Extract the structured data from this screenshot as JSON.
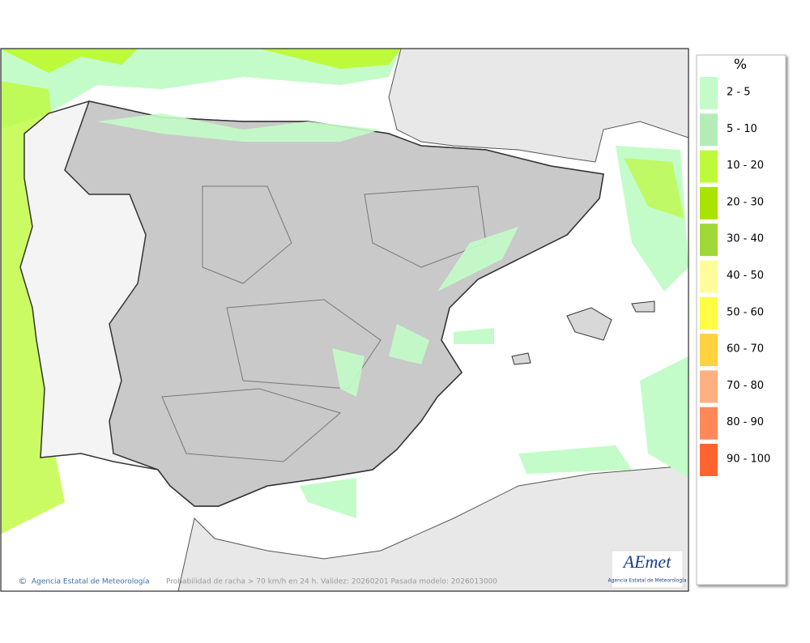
{
  "legend": {
    "title": "%",
    "items": [
      {
        "label": "2 - 5",
        "color": "#c3fcc8"
      },
      {
        "label": "5 - 10",
        "color": "#b4ecb8"
      },
      {
        "label": "10 - 20",
        "color": "#befa3c"
      },
      {
        "label": "20 - 30",
        "color": "#a8e400"
      },
      {
        "label": "30 - 40",
        "color": "#a0d838"
      },
      {
        "label": "40 - 50",
        "color": "#fffc9c"
      },
      {
        "label": "50 - 60",
        "color": "#fffc44"
      },
      {
        "label": "60 - 70",
        "color": "#ffd240"
      },
      {
        "label": "70 - 80",
        "color": "#ffb080"
      },
      {
        "label": "80 - 90",
        "color": "#ff8858"
      },
      {
        "label": "90 - 100",
        "color": "#ff6430"
      }
    ]
  },
  "footer": {
    "copyright": "©",
    "agency": "Agencia Estatal de Meteorología",
    "caption": "Probabilidad de racha > 70 km/h en 24 h. Validez: 20260201 Pasada modelo: 2026013000"
  },
  "logo": {
    "name": "AEmet",
    "subtitle": "Agencia Estatal de Meteorología"
  }
}
